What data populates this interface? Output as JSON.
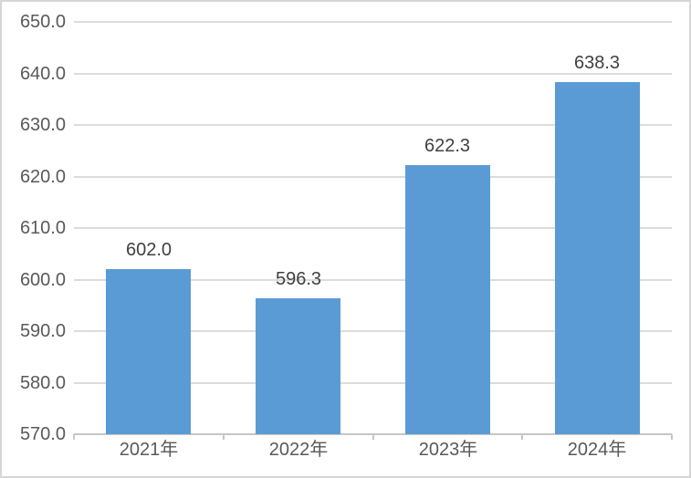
{
  "chart_data": {
    "type": "bar",
    "title": "",
    "xlabel": "",
    "ylabel": "",
    "categories": [
      "2021年",
      "2022年",
      "2023年",
      "2024年"
    ],
    "values": [
      602.0,
      596.3,
      622.3,
      638.3
    ],
    "data_labels": [
      "602.0",
      "596.3",
      "622.3",
      "638.3"
    ],
    "ylim": [
      570,
      650
    ],
    "y_ticks": [
      570,
      580,
      590,
      600,
      610,
      620,
      630,
      640,
      650
    ],
    "y_tick_labels": [
      "570.0",
      "580.0",
      "590.0",
      "600.0",
      "610.0",
      "620.0",
      "630.0",
      "640.0",
      "650.0"
    ],
    "grid": true,
    "legend": false,
    "bar_to_category_width_ratio": 0.568
  },
  "colors": {
    "bar": "#5B9BD5",
    "gridline": "#DCDCDC",
    "axis_line": "#C6C6C6",
    "axis_text": "#595959",
    "data_label_text": "#404040",
    "border": "#D6D6D6",
    "background": "#FFFFFF"
  }
}
